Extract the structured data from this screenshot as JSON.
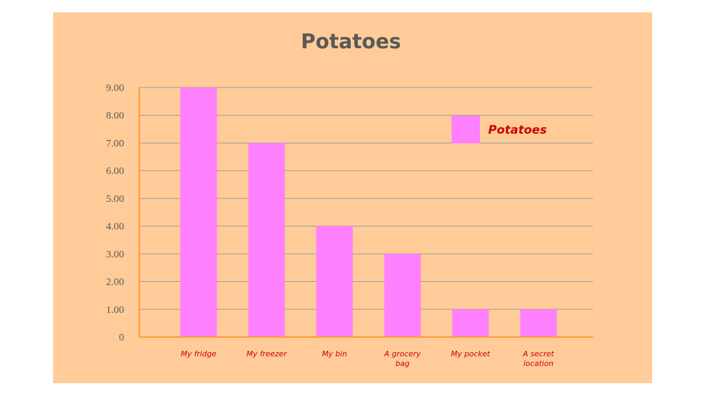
{
  "chart_data": {
    "type": "bar",
    "title": "Potatoes",
    "categories": [
      "My fridge",
      "My freezer",
      "My bin",
      "A grocery bag",
      "My pocket",
      "A secret location"
    ],
    "series": [
      {
        "name": "Potatoes",
        "values": [
          9,
          7,
          4,
          3,
          1,
          1
        ]
      }
    ],
    "ylim": [
      0,
      9
    ],
    "yticks": [
      "0",
      "1.00",
      "2.00",
      "3.00",
      "4.00",
      "5.00",
      "6.00",
      "7.00",
      "8.00",
      "9.00"
    ],
    "grid": true,
    "legend_position": "top-right",
    "colors": {
      "background": "#ffcc99",
      "bar": "#ff80ff",
      "axis": "#ff9933",
      "category_text": "#cc0000",
      "legend_text": "#cc0000",
      "title_text": "#595959"
    }
  }
}
